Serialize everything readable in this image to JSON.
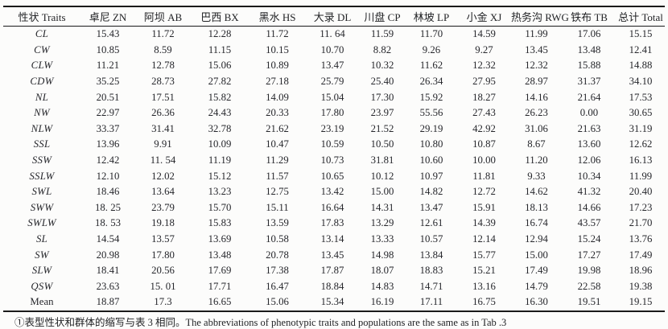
{
  "page": {
    "background_color": "#fcfcfb",
    "text_color": "#26272c",
    "rule_color": "#1a1a1a"
  },
  "table": {
    "columns": [
      "性状 Traits",
      "卓尼 ZN",
      "阿坝 AB",
      "巴西 BX",
      "黑水 HS",
      "大录 DL",
      "川盘 CP",
      "林坡 LP",
      "小金 XJ",
      "热务沟 RWG",
      "铁布 TB",
      "总计 Total"
    ],
    "rows": [
      {
        "trait": "CL",
        "values": [
          "15.43",
          "11.72",
          "12.28",
          "11.72",
          "11. 64",
          "11.59",
          "11.70",
          "14.59",
          "11.99",
          "17.06",
          "15.15"
        ]
      },
      {
        "trait": "CW",
        "values": [
          "10.85",
          "8.59",
          "11.15",
          "10.15",
          "10.70",
          "8.82",
          "9.26",
          "9.27",
          "13.45",
          "13.48",
          "12.41"
        ]
      },
      {
        "trait": "CLW",
        "values": [
          "11.21",
          "12.78",
          "15.06",
          "10.89",
          "13.47",
          "10.32",
          "11.62",
          "12.32",
          "12.32",
          "15.88",
          "14.88"
        ]
      },
      {
        "trait": "CDW",
        "values": [
          "35.25",
          "28.73",
          "27.82",
          "27.18",
          "25.79",
          "25.40",
          "26.34",
          "27.95",
          "28.97",
          "31.37",
          "34.10"
        ]
      },
      {
        "trait": "NL",
        "values": [
          "20.51",
          "17.51",
          "15.82",
          "14.09",
          "15.04",
          "17.30",
          "15.92",
          "18.27",
          "14.16",
          "21.64",
          "17.53"
        ]
      },
      {
        "trait": "NW",
        "values": [
          "22.97",
          "26.36",
          "24.43",
          "20.33",
          "17.80",
          "23.97",
          "55.56",
          "27.43",
          "26.23",
          "0.00",
          "30.65"
        ]
      },
      {
        "trait": "NLW",
        "values": [
          "33.37",
          "31.41",
          "32.78",
          "21.62",
          "23.19",
          "21.52",
          "29.19",
          "42.92",
          "31.06",
          "21.63",
          "31.19"
        ]
      },
      {
        "trait": "SSL",
        "values": [
          "13.96",
          "9.91",
          "10.09",
          "10.47",
          "10.59",
          "10.50",
          "10.80",
          "10.87",
          "8.67",
          "13.60",
          "12.62"
        ]
      },
      {
        "trait": "SSW",
        "values": [
          "12.42",
          "11. 54",
          "11.19",
          "11.29",
          "10.73",
          "31.81",
          "10.60",
          "10.00",
          "11.20",
          "12.06",
          "16.13"
        ]
      },
      {
        "trait": "SSLW",
        "values": [
          "12.10",
          "12.02",
          "15.12",
          "11.57",
          "10.65",
          "10.12",
          "10.97",
          "11.81",
          "9.33",
          "10.34",
          "11.99"
        ]
      },
      {
        "trait": "SWL",
        "values": [
          "18.46",
          "13.64",
          "13.23",
          "12.75",
          "13.42",
          "15.00",
          "14.82",
          "12.72",
          "14.62",
          "41.32",
          "20.40"
        ]
      },
      {
        "trait": "SWW",
        "values": [
          "18. 25",
          "23.79",
          "15.70",
          "15.11",
          "16.64",
          "14.31",
          "13.47",
          "15.91",
          "18.13",
          "14.66",
          "17.23"
        ]
      },
      {
        "trait": "SWLW",
        "values": [
          "18. 53",
          "19.18",
          "15.83",
          "13.59",
          "17.83",
          "13.29",
          "12.61",
          "14.39",
          "16.74",
          "43.57",
          "21.70"
        ]
      },
      {
        "trait": "SL",
        "values": [
          "14.54",
          "13.57",
          "13.69",
          "10.58",
          "13.14",
          "13.33",
          "10.57",
          "12.14",
          "12.94",
          "15.24",
          "13.76"
        ]
      },
      {
        "trait": "SW",
        "values": [
          "20.98",
          "17.80",
          "13.48",
          "20.78",
          "13.45",
          "14.98",
          "13.84",
          "15.77",
          "15.00",
          "17.27",
          "17.49"
        ]
      },
      {
        "trait": "SLW",
        "values": [
          "18.41",
          "20.56",
          "17.69",
          "17.38",
          "17.87",
          "18.07",
          "18.83",
          "15.21",
          "17.49",
          "19.98",
          "18.96"
        ]
      },
      {
        "trait": "QSW",
        "values": [
          "23.63",
          "15. 01",
          "17.71",
          "16.47",
          "18.84",
          "14.83",
          "14.71",
          "13.16",
          "14.79",
          "22.58",
          "19.38"
        ]
      },
      {
        "trait": "Mean",
        "values": [
          "18.87",
          "17.3",
          "16.65",
          "15.06",
          "15.34",
          "16.19",
          "17.11",
          "16.75",
          "16.30",
          "19.51",
          "19.15"
        ]
      }
    ]
  },
  "footnote": "①表型性状和群体的缩写与表 3 相同。The abbreviations of phenotypic traits and populations are the same as in Tab .3"
}
